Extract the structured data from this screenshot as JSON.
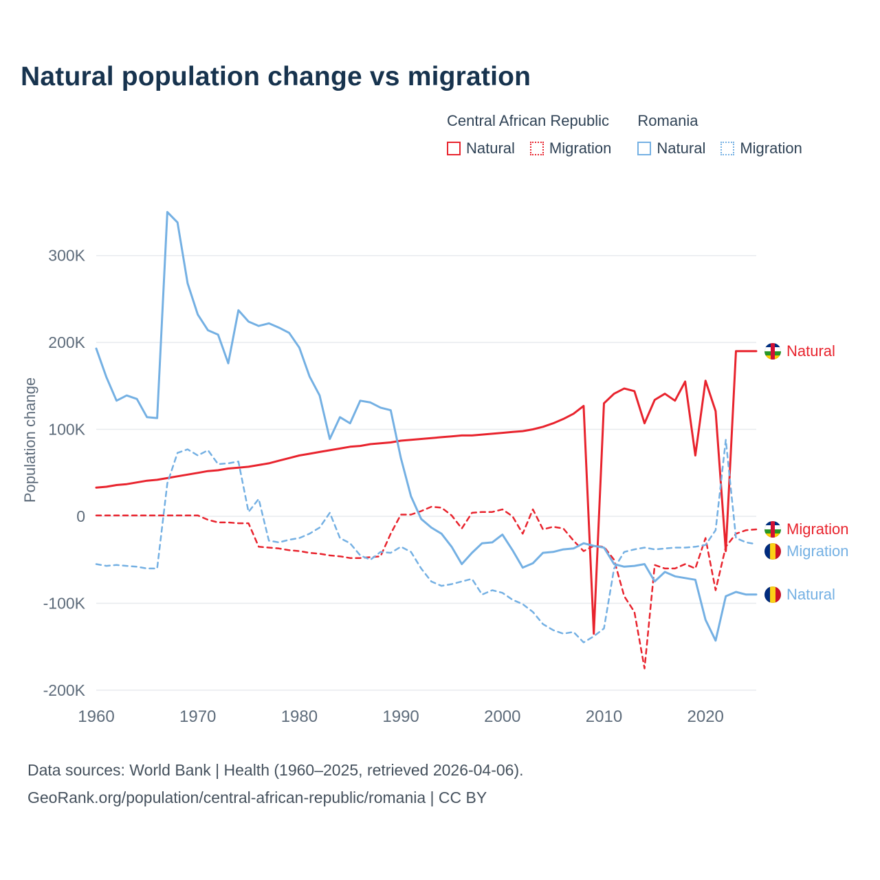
{
  "title": "Natural population change vs migration",
  "colors": {
    "car": "#e8232d",
    "romania": "#74b0e3",
    "grid": "#e7eaee",
    "axis_text": "#5d6b7a",
    "title_text": "#17334e"
  },
  "legend": {
    "groups": [
      {
        "country": "Central African Republic",
        "items": [
          {
            "label": "Natural",
            "style": "solid"
          },
          {
            "label": "Migration",
            "style": "dotted"
          }
        ]
      },
      {
        "country": "Romania",
        "items": [
          {
            "label": "Natural",
            "style": "solid"
          },
          {
            "label": "Migration",
            "style": "dotted"
          }
        ]
      }
    ]
  },
  "y_axis": {
    "label": "Population change",
    "ticks": [
      {
        "value": 300,
        "label": "300K"
      },
      {
        "value": 200,
        "label": "200K"
      },
      {
        "value": 100,
        "label": "100K"
      },
      {
        "value": 0,
        "label": "0"
      },
      {
        "value": -100,
        "label": "-100K"
      },
      {
        "value": -200,
        "label": "-200K"
      }
    ]
  },
  "x_axis": {
    "ticks": [
      {
        "value": 1960,
        "label": "1960"
      },
      {
        "value": 1970,
        "label": "1970"
      },
      {
        "value": 1980,
        "label": "1980"
      },
      {
        "value": 1990,
        "label": "1990"
      },
      {
        "value": 2000,
        "label": "2000"
      },
      {
        "value": 2010,
        "label": "2010"
      },
      {
        "value": 2020,
        "label": "2020"
      }
    ]
  },
  "footer": {
    "line1": "Data sources: World Bank | Health (1960–2025, retrieved 2026-04-06).",
    "line2": "GeoRank.org/population/central-african-republic/romania | CC BY"
  },
  "chart_data": {
    "type": "line",
    "title": "Natural population change vs migration",
    "xlabel": "",
    "ylabel": "Population change",
    "y_unit": "thousands",
    "x_start": 1960,
    "x_end": 2025,
    "ylim": [
      -220,
      370
    ],
    "grid": "horizontal",
    "legend_position": "top-right",
    "series": [
      {
        "name": "Central African Republic — Natural",
        "label": "Natural",
        "country": "car",
        "dash": false,
        "values": [
          33,
          34,
          36,
          37,
          39,
          41,
          42,
          44,
          46,
          48,
          50,
          52,
          53,
          55,
          56,
          57,
          59,
          61,
          64,
          67,
          70,
          72,
          74,
          76,
          78,
          80,
          81,
          83,
          84,
          85,
          87,
          88,
          89,
          90,
          91,
          92,
          93,
          93,
          94,
          95,
          96,
          97,
          98,
          100,
          103,
          107,
          112,
          118,
          127,
          -135,
          130,
          141,
          147,
          144,
          107,
          134,
          141,
          133,
          155,
          70,
          156,
          121,
          -40,
          190,
          190,
          190
        ]
      },
      {
        "name": "Central African Republic — Migration",
        "label": "Migration",
        "country": "car",
        "dash": true,
        "values": [
          1,
          1,
          1,
          1,
          1,
          1,
          1,
          1,
          1,
          1,
          1,
          -4,
          -7,
          -7,
          -8,
          -8,
          -35,
          -36,
          -37,
          -39,
          -40,
          -42,
          -43,
          -45,
          -46,
          -48,
          -48,
          -47,
          -46,
          -20,
          2,
          2,
          6,
          11,
          10,
          1,
          -14,
          4,
          5,
          5,
          8,
          0,
          -20,
          8,
          -15,
          -12,
          -14,
          -28,
          -40,
          -34,
          -35,
          -50,
          -92,
          -110,
          -175,
          -56,
          -60,
          -60,
          -55,
          -60,
          -25,
          -85,
          -35,
          -20,
          -16,
          -15
        ]
      },
      {
        "name": "Romania — Natural",
        "label": "Natural",
        "country": "romania",
        "dash": false,
        "values": [
          193,
          160,
          133,
          139,
          135,
          114,
          113,
          350,
          338,
          268,
          232,
          214,
          209,
          176,
          237,
          224,
          219,
          222,
          217,
          211,
          194,
          161,
          139,
          89,
          114,
          107,
          133,
          131,
          125,
          122,
          67,
          23,
          -3,
          -13,
          -20,
          -35,
          -55,
          -42,
          -31,
          -30,
          -21,
          -39,
          -59,
          -54,
          -42,
          -41,
          -38,
          -37,
          -31,
          -34,
          -36,
          -55,
          -58,
          -57,
          -55,
          -75,
          -64,
          -69,
          -71,
          -73,
          -119,
          -143,
          -92,
          -87,
          -90,
          -90
        ]
      },
      {
        "name": "Romania — Migration",
        "label": "Migration",
        "country": "romania",
        "dash": true,
        "values": [
          -55,
          -57,
          -56,
          -57,
          -58,
          -60,
          -60,
          38,
          73,
          77,
          70,
          76,
          60,
          61,
          63,
          5,
          20,
          -28,
          -30,
          -27,
          -25,
          -20,
          -13,
          4,
          -25,
          -31,
          -45,
          -50,
          -41,
          -42,
          -35,
          -41,
          -60,
          -75,
          -80,
          -78,
          -75,
          -72,
          -90,
          -85,
          -88,
          -96,
          -101,
          -110,
          -124,
          -131,
          -135,
          -133,
          -145,
          -138,
          -129,
          -60,
          -41,
          -38,
          -36,
          -38,
          -37,
          -36,
          -36,
          -35,
          -33,
          -16,
          88,
          -25,
          -30,
          -32
        ]
      }
    ]
  }
}
